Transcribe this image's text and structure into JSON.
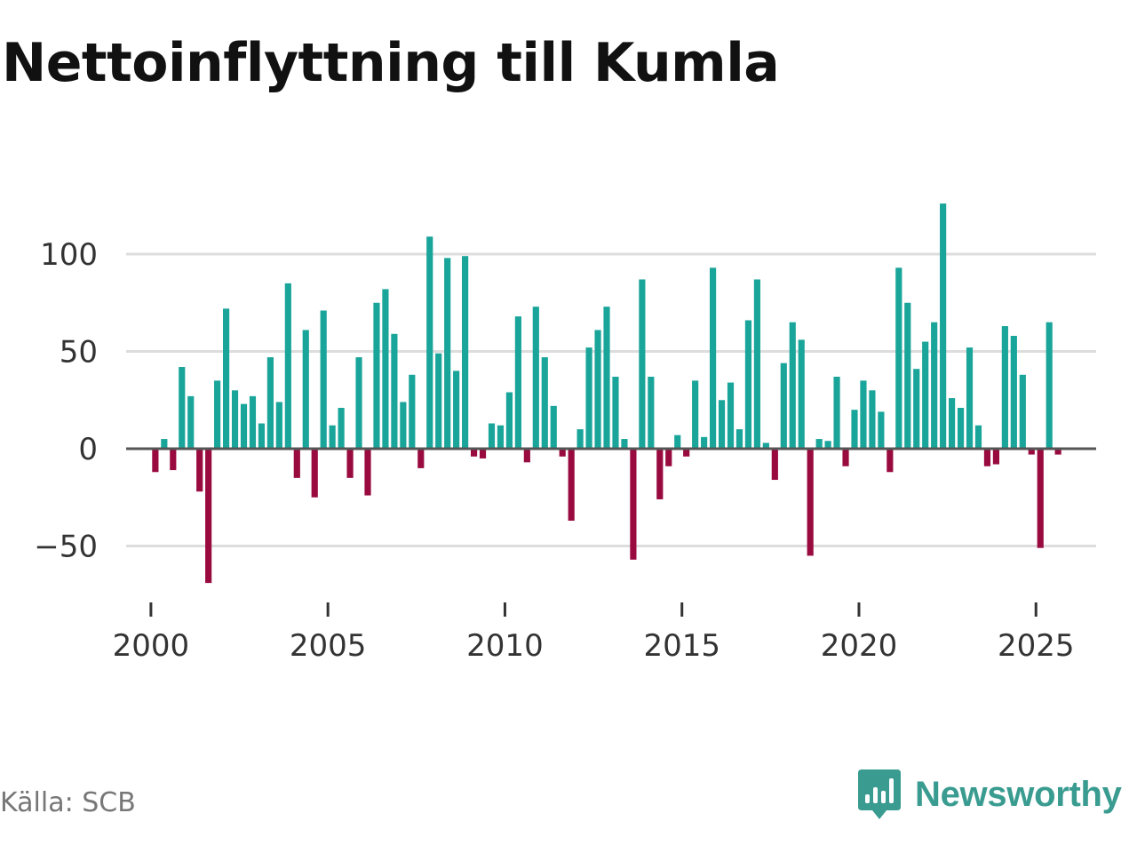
{
  "chart_data": {
    "type": "bar",
    "title": "Nettoinflyttning till Kumla",
    "xlabel": "",
    "ylabel": "",
    "x_ticks": [
      "2000",
      "2005",
      "2010",
      "2015",
      "2020",
      "2025"
    ],
    "y_ticks": [
      "100",
      "50",
      "0",
      "−50"
    ],
    "xlim": [
      1999.3,
      2026.7
    ],
    "ylim": [
      -80,
      132
    ],
    "grid": true,
    "colors": {
      "positive": "#1aa59a",
      "negative": "#990a3f",
      "axis": "#555555",
      "grid": "#dddddd"
    },
    "series": [
      {
        "name": "Nettoinflyttning",
        "periods": [
          "2000 Q1",
          "2000 Q2",
          "2000 Q3",
          "2000 Q4",
          "2001 Q1",
          "2001 Q2",
          "2001 Q3",
          "2001 Q4",
          "2002 Q1",
          "2002 Q2",
          "2002 Q3",
          "2002 Q4",
          "2003 Q1",
          "2003 Q2",
          "2003 Q3",
          "2003 Q4",
          "2004 Q1",
          "2004 Q2",
          "2004 Q3",
          "2004 Q4",
          "2005 Q1",
          "2005 Q2",
          "2005 Q3",
          "2005 Q4",
          "2006 Q1",
          "2006 Q2",
          "2006 Q3",
          "2006 Q4",
          "2007 Q1",
          "2007 Q2",
          "2007 Q3",
          "2007 Q4",
          "2008 Q1",
          "2008 Q2",
          "2008 Q3",
          "2008 Q4",
          "2009 Q1",
          "2009 Q2",
          "2009 Q3",
          "2009 Q4",
          "2010 Q1",
          "2010 Q2",
          "2010 Q3",
          "2010 Q4",
          "2011 Q1",
          "2011 Q2",
          "2011 Q3",
          "2011 Q4",
          "2012 Q1",
          "2012 Q2",
          "2012 Q3",
          "2012 Q4",
          "2013 Q1",
          "2013 Q2",
          "2013 Q3",
          "2013 Q4",
          "2014 Q1",
          "2014 Q2",
          "2014 Q3",
          "2014 Q4",
          "2015 Q1",
          "2015 Q2",
          "2015 Q3",
          "2015 Q4",
          "2016 Q1",
          "2016 Q2",
          "2016 Q3",
          "2016 Q4",
          "2017 Q1",
          "2017 Q2",
          "2017 Q3",
          "2017 Q4",
          "2018 Q1",
          "2018 Q2",
          "2018 Q3",
          "2018 Q4",
          "2019 Q1",
          "2019 Q2",
          "2019 Q3",
          "2019 Q4",
          "2020 Q1",
          "2020 Q2",
          "2020 Q3",
          "2020 Q4",
          "2021 Q1",
          "2021 Q2",
          "2021 Q3",
          "2021 Q4",
          "2022 Q1",
          "2022 Q2",
          "2022 Q3",
          "2022 Q4",
          "2023 Q1",
          "2023 Q2",
          "2023 Q3",
          "2023 Q4",
          "2024 Q1",
          "2024 Q2",
          "2024 Q3",
          "2024 Q4",
          "2025 Q1",
          "2025 Q2",
          "2025 Q3",
          "2025 Q4"
        ],
        "values": [
          -12,
          5,
          -11,
          42,
          27,
          -22,
          -69,
          35,
          72,
          30,
          23,
          27,
          13,
          47,
          24,
          85,
          -15,
          61,
          -25,
          71,
          12,
          21,
          -15,
          47,
          -24,
          75,
          82,
          59,
          24,
          38,
          -10,
          109,
          49,
          98,
          40,
          99,
          -4,
          -5,
          13,
          12,
          29,
          68,
          -7,
          73,
          47,
          22,
          -4,
          -37,
          10,
          52,
          61,
          73,
          37,
          5,
          -57,
          87,
          37,
          -26,
          -9,
          7,
          -4,
          35,
          6,
          93,
          25,
          34,
          10,
          66,
          87,
          3,
          -16,
          44,
          65,
          56,
          -55,
          5,
          4,
          37,
          -9,
          20,
          35,
          30,
          19,
          -12,
          93,
          75,
          41,
          55,
          65,
          126,
          26,
          21,
          52,
          12,
          -9,
          -8,
          63,
          58,
          38,
          -3,
          -51,
          65,
          -3,
          null
        ]
      }
    ]
  },
  "source": "Källa: SCB",
  "brand": {
    "name": "Newsworthy",
    "icon": "newsworthy-logo-icon",
    "color": "#3a9c90"
  }
}
